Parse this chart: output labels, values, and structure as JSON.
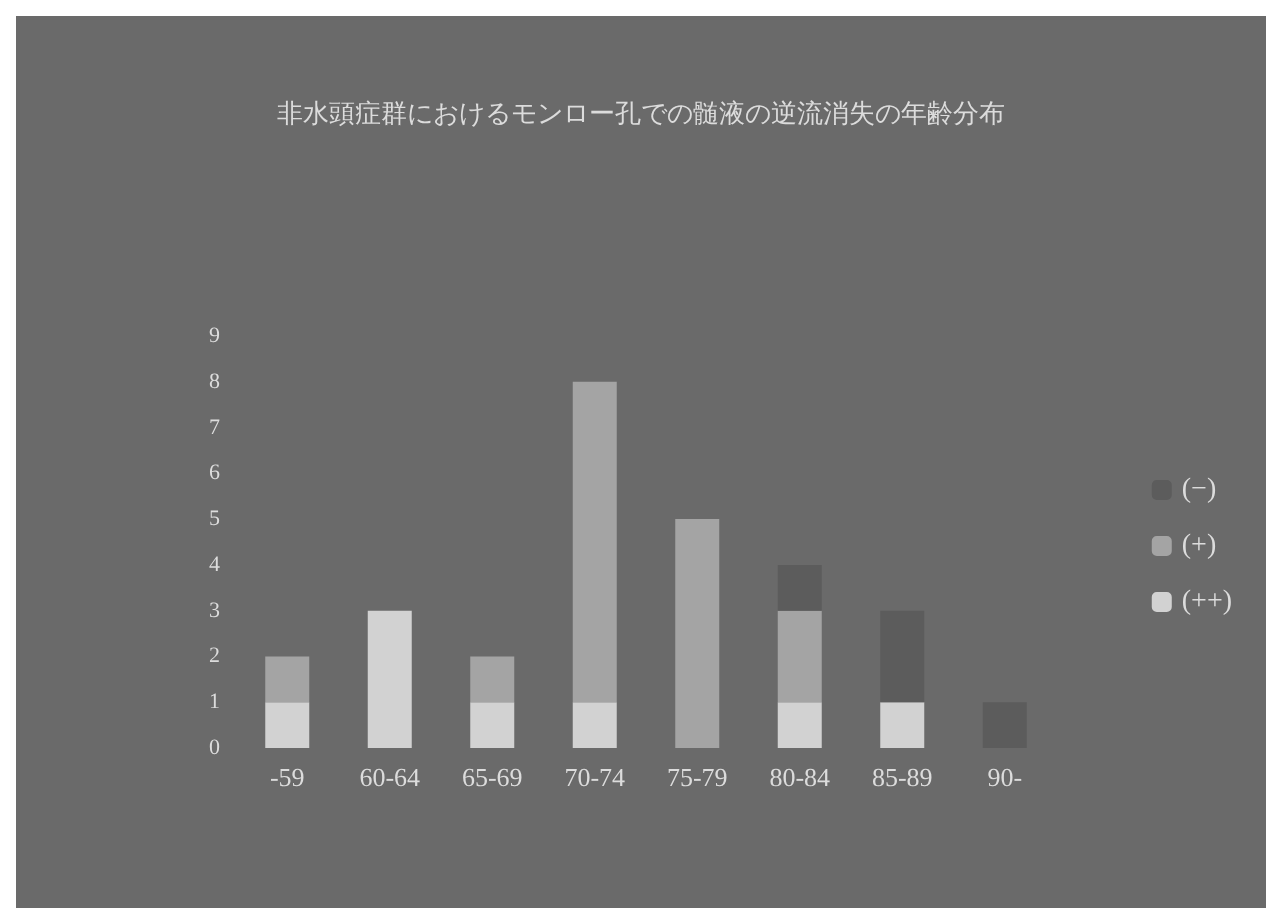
{
  "chart_data": {
    "type": "bar",
    "title": "非水頭症群におけるモンロー孔での髄液の逆流消失の年齢分布",
    "categories": [
      "-59",
      "60-64",
      "65-69",
      "70-74",
      "75-79",
      "80-84",
      "85-89",
      "90-"
    ],
    "stacked": true,
    "series": [
      {
        "name": "(++)",
        "color": "#d2d2d2",
        "values": [
          1,
          3,
          1,
          1,
          0,
          1,
          1,
          0
        ]
      },
      {
        "name": "(+)",
        "color": "#a4a4a4",
        "values": [
          1,
          0,
          1,
          7,
          5,
          2,
          0,
          0
        ]
      },
      {
        "name": "(−)",
        "color": "#5c5c5c",
        "values": [
          0,
          0,
          0,
          0,
          0,
          1,
          2,
          1
        ]
      }
    ],
    "ylim": [
      0,
      9
    ],
    "yticks": [
      0,
      1,
      2,
      3,
      4,
      5,
      6,
      7,
      8,
      9
    ],
    "grid": false,
    "legend": "right"
  }
}
